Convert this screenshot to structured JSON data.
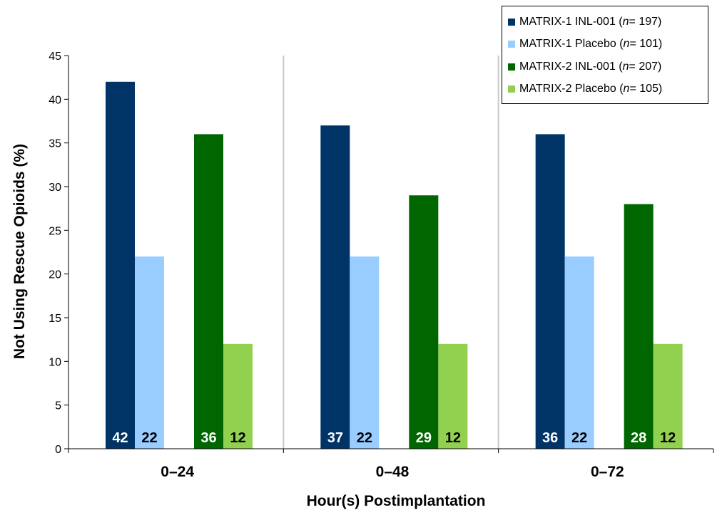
{
  "chart_data": {
    "type": "bar",
    "xlabel": "Hour(s) Postimplantation",
    "ylabel": "Not Using Rescue Opioids (%)",
    "ylim": [
      0,
      45
    ],
    "yticks": [
      "0",
      "5",
      "10",
      "15",
      "20",
      "25",
      "30",
      "35",
      "40",
      "45"
    ],
    "categories": [
      "0–24",
      "0–48",
      "0–72"
    ],
    "series": [
      {
        "name": "MATRIX-1 INL-001",
        "n": "197",
        "color": "#003366",
        "label_color": "#ffffff",
        "values": [
          42,
          37,
          36
        ]
      },
      {
        "name": "MATRIX-1 Placebo",
        "n": "101",
        "color": "#99ccff",
        "label_color": "#000000",
        "values": [
          22,
          22,
          22
        ]
      },
      {
        "name": "MATRIX-2 INL-001",
        "n": "207",
        "color": "#006600",
        "label_color": "#ffffff",
        "values": [
          36,
          29,
          28
        ]
      },
      {
        "name": "MATRIX-2 Placebo",
        "n": "105",
        "color": "#92d050",
        "label_color": "#000000",
        "values": [
          12,
          12,
          12
        ]
      }
    ],
    "data_labels": [
      [
        "42",
        "22",
        "36",
        "12"
      ],
      [
        "37",
        "22",
        "29",
        "12"
      ],
      [
        "36",
        "22",
        "28",
        "12"
      ]
    ],
    "legend_position": "top-right",
    "grid": false,
    "category_separators": true
  },
  "legend": {
    "items": [
      {
        "name": "MATRIX-1 INL-001",
        "n_prefix": "n",
        "n_text": " = 197)"
      },
      {
        "name": "MATRIX-1 Placebo",
        "n_prefix": "n",
        "n_text": " = 101)"
      },
      {
        "name": "MATRIX-2 INL-001",
        "n_prefix": "n",
        "n_text": " = 207)"
      },
      {
        "name": "MATRIX-2 Placebo",
        "n_prefix": "n",
        "n_text": " = 105)"
      }
    ]
  }
}
